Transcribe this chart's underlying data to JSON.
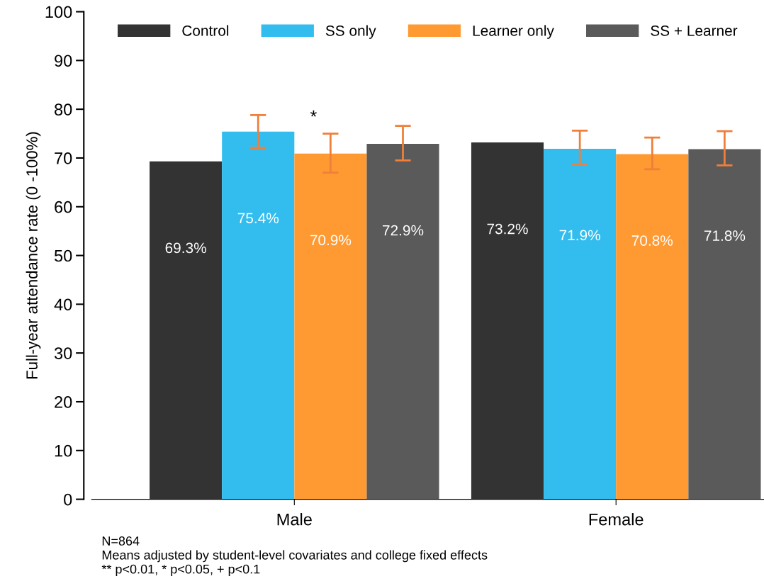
{
  "chart_data": {
    "type": "bar",
    "ylabel": "Full-year attendance rate (0 -100%)",
    "categories": [
      "Male",
      "Female"
    ],
    "ylim": [
      0,
      100
    ],
    "yticks": [
      0,
      10,
      20,
      30,
      40,
      50,
      60,
      70,
      80,
      90,
      100
    ],
    "grid": false,
    "legend": "top",
    "series": [
      {
        "name": "Control",
        "color": "#333333",
        "values": [
          69.3,
          73.2
        ],
        "value_labels": [
          "69.3%",
          "73.2%"
        ]
      },
      {
        "name": "SS only",
        "color": "#33bdef",
        "values": [
          75.4,
          71.9
        ],
        "value_labels": [
          "75.4%",
          "71.9%"
        ],
        "errors": [
          [
            72.1,
            78.8
          ],
          [
            68.6,
            75.6
          ]
        ]
      },
      {
        "name": "Learner only",
        "color": "#ff9a33",
        "values": [
          70.9,
          70.8
        ],
        "value_labels": [
          "70.9%",
          "70.8%"
        ],
        "errors": [
          [
            67.0,
            75.0
          ],
          [
            67.7,
            74.2
          ]
        ]
      },
      {
        "name": "SS + Learner",
        "color": "#5a5a5a",
        "values": [
          72.9,
          71.8
        ],
        "value_labels": [
          "72.9%",
          "71.8%"
        ],
        "errors": [
          [
            69.5,
            76.6
          ],
          [
            68.5,
            75.5
          ]
        ]
      }
    ],
    "annotations": [
      "*",
      "N=864",
      "Means adjusted by student-level covariates and college fixed effects",
      "** p<0.01, * p<0.05, + p<0.1"
    ]
  }
}
